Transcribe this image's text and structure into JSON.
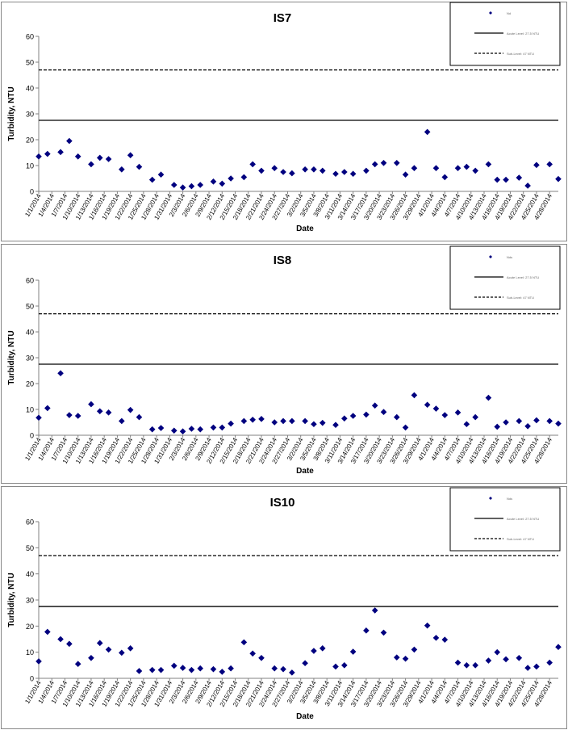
{
  "colors": {
    "marker": "#00007F",
    "line": "#000000",
    "panel_border": "#888888"
  },
  "chart_data": [
    {
      "type": "scatter",
      "title": "IS7",
      "xlabel": "Date",
      "ylabel": "Turbidity, NTU",
      "ylim": [
        0,
        60
      ],
      "yticks": [
        "0",
        "10",
        "20",
        "30",
        "40",
        "50",
        "60"
      ],
      "xticks": [
        "1/1/2014",
        "1/4/2014",
        "1/7/2014",
        "1/10/2014",
        "1/13/2014",
        "1/16/2014",
        "1/19/2014",
        "1/22/2014",
        "1/25/2014",
        "1/28/2014",
        "1/31/2014",
        "2/3/2014",
        "2/6/2014",
        "2/9/2014",
        "2/12/2014",
        "2/15/2014",
        "2/18/2014",
        "2/21/2014",
        "2/24/2014",
        "2/27/2014",
        "3/2/2014",
        "3/5/2014",
        "3/8/2014",
        "3/11/2014",
        "3/14/2014",
        "3/17/2014",
        "3/20/2014",
        "3/23/2014",
        "3/26/2014",
        "3/29/2014",
        "4/1/2014",
        "4/4/2014",
        "4/7/2014",
        "4/10/2014",
        "4/13/2014",
        "4/16/2014",
        "4/19/2014",
        "4/22/2014",
        "4/25/2014",
        "4/28/2014"
      ],
      "x_start": "1/1/2014",
      "x_end": "4/30/2014",
      "grid": false,
      "legend_position": "top-right",
      "legend": [
        {
          "kind": "marker",
          "label": "Nd"
        },
        {
          "kind": "solid",
          "label": "Acute Level: 27.5 NTU"
        },
        {
          "kind": "dashed",
          "label": "Sub-Level: 47 NTU"
        }
      ],
      "hlines": [
        {
          "value": 27.5,
          "style": "solid"
        },
        {
          "value": 47,
          "style": "dashed"
        }
      ],
      "series": [
        {
          "points": [
            [
              "1/1/2014",
              13.5
            ],
            [
              "1/3/2014",
              14.5
            ],
            [
              "1/6/2014",
              15.2
            ],
            [
              "1/8/2014",
              19.5
            ],
            [
              "1/10/2014",
              13.5
            ],
            [
              "1/13/2014",
              10.5
            ],
            [
              "1/15/2014",
              13
            ],
            [
              "1/17/2014",
              12.5
            ],
            [
              "1/20/2014",
              8.5
            ],
            [
              "1/22/2014",
              14
            ],
            [
              "1/24/2014",
              9.5
            ],
            [
              "1/27/2014",
              4.5
            ],
            [
              "1/29/2014",
              6.5
            ],
            [
              "2/1/2014",
              2.5
            ],
            [
              "2/3/2014",
              1.5
            ],
            [
              "2/5/2014",
              2
            ],
            [
              "2/7/2014",
              2.5
            ],
            [
              "2/10/2014",
              3.8
            ],
            [
              "2/12/2014",
              3
            ],
            [
              "2/14/2014",
              5
            ],
            [
              "2/17/2014",
              5.5
            ],
            [
              "2/19/2014",
              10.5
            ],
            [
              "2/21/2014",
              8
            ],
            [
              "2/24/2014",
              9
            ],
            [
              "2/26/2014",
              7.5
            ],
            [
              "2/28/2014",
              7
            ],
            [
              "3/3/2014",
              8.5
            ],
            [
              "3/5/2014",
              8.5
            ],
            [
              "3/7/2014",
              8
            ],
            [
              "3/10/2014",
              6.8
            ],
            [
              "3/12/2014",
              7.5
            ],
            [
              "3/14/2014",
              6.8
            ],
            [
              "3/17/2014",
              8
            ],
            [
              "3/19/2014",
              10.5
            ],
            [
              "3/21/2014",
              11
            ],
            [
              "3/24/2014",
              11
            ],
            [
              "3/26/2014",
              6.5
            ],
            [
              "3/28/2014",
              9
            ],
            [
              "3/31/2014",
              23
            ],
            [
              "4/2/2014",
              9
            ],
            [
              "4/4/2014",
              5.5
            ],
            [
              "4/7/2014",
              9
            ],
            [
              "4/9/2014",
              9.5
            ],
            [
              "4/11/2014",
              8
            ],
            [
              "4/14/2014",
              10.5
            ],
            [
              "4/16/2014",
              4.5
            ],
            [
              "4/18/2014",
              4.5
            ],
            [
              "4/21/2014",
              5.3
            ],
            [
              "4/23/2014",
              2.2
            ],
            [
              "4/25/2014",
              10.2
            ],
            [
              "4/28/2014",
              10.5
            ],
            [
              "4/30/2014",
              4.8
            ]
          ]
        }
      ]
    },
    {
      "type": "scatter",
      "title": "IS8",
      "xlabel": "Date",
      "ylabel": "Turbidity, NTU",
      "ylim": [
        0,
        60
      ],
      "yticks": [
        "0",
        "10",
        "20",
        "30",
        "40",
        "50",
        "60"
      ],
      "xticks": [
        "1/1/2014",
        "1/4/2014",
        "1/7/2014",
        "1/10/2014",
        "1/13/2014",
        "1/16/2014",
        "1/19/2014",
        "1/22/2014",
        "1/25/2014",
        "1/28/2014",
        "1/31/2014",
        "2/3/2014",
        "2/6/2014",
        "2/9/2014",
        "2/12/2014",
        "2/15/2014",
        "2/18/2014",
        "2/21/2014",
        "2/24/2014",
        "2/27/2014",
        "3/2/2014",
        "3/5/2014",
        "3/8/2014",
        "3/11/2014",
        "3/14/2014",
        "3/17/2014",
        "3/20/2014",
        "3/23/2014",
        "3/26/2014",
        "3/29/2014",
        "4/1/2014",
        "4/4/2014",
        "4/7/2014",
        "4/10/2014",
        "4/13/2014",
        "4/16/2014",
        "4/19/2014",
        "4/22/2014",
        "4/25/2014",
        "4/28/2014"
      ],
      "x_start": "1/1/2014",
      "x_end": "4/30/2014",
      "grid": false,
      "legend_position": "top-right",
      "legend": [
        {
          "kind": "marker",
          "label": "Nds"
        },
        {
          "kind": "solid",
          "label": "Acute Level: 27.5 NTU"
        },
        {
          "kind": "dashed",
          "label": "Sub-Level: 47 NTU"
        }
      ],
      "hlines": [
        {
          "value": 27.5,
          "style": "solid"
        },
        {
          "value": 47,
          "style": "dashed"
        }
      ],
      "series": [
        {
          "points": [
            [
              "1/1/2014",
              6.8
            ],
            [
              "1/3/2014",
              10.5
            ],
            [
              "1/6/2014",
              24
            ],
            [
              "1/8/2014",
              7.8
            ],
            [
              "1/10/2014",
              7.5
            ],
            [
              "1/13/2014",
              12
            ],
            [
              "1/15/2014",
              9.3
            ],
            [
              "1/17/2014",
              8.8
            ],
            [
              "1/20/2014",
              5.5
            ],
            [
              "1/22/2014",
              9.8
            ],
            [
              "1/24/2014",
              7
            ],
            [
              "1/27/2014",
              2.3
            ],
            [
              "1/29/2014",
              2.8
            ],
            [
              "2/1/2014",
              1.8
            ],
            [
              "2/3/2014",
              1.5
            ],
            [
              "2/5/2014",
              2.5
            ],
            [
              "2/7/2014",
              2.3
            ],
            [
              "2/10/2014",
              3
            ],
            [
              "2/12/2014",
              3
            ],
            [
              "2/14/2014",
              4.5
            ],
            [
              "2/17/2014",
              5.5
            ],
            [
              "2/19/2014",
              6
            ],
            [
              "2/21/2014",
              6.3
            ],
            [
              "2/24/2014",
              5
            ],
            [
              "2/26/2014",
              5.5
            ],
            [
              "2/28/2014",
              5.5
            ],
            [
              "3/3/2014",
              5.5
            ],
            [
              "3/5/2014",
              4.3
            ],
            [
              "3/7/2014",
              4.8
            ],
            [
              "3/10/2014",
              4
            ],
            [
              "3/12/2014",
              6.5
            ],
            [
              "3/14/2014",
              7.5
            ],
            [
              "3/17/2014",
              8
            ],
            [
              "3/19/2014",
              11.5
            ],
            [
              "3/21/2014",
              9
            ],
            [
              "3/24/2014",
              7
            ],
            [
              "3/26/2014",
              3
            ],
            [
              "3/28/2014",
              15.5
            ],
            [
              "3/31/2014",
              11.8
            ],
            [
              "4/2/2014",
              10.3
            ],
            [
              "4/4/2014",
              7.8
            ],
            [
              "4/7/2014",
              8.8
            ],
            [
              "4/9/2014",
              4.3
            ],
            [
              "4/11/2014",
              7
            ],
            [
              "4/14/2014",
              14.5
            ],
            [
              "4/16/2014",
              3.3
            ],
            [
              "4/18/2014",
              5
            ],
            [
              "4/21/2014",
              5.5
            ],
            [
              "4/23/2014",
              3.5
            ],
            [
              "4/25/2014",
              5.8
            ],
            [
              "4/28/2014",
              5.5
            ],
            [
              "4/30/2014",
              4.5
            ]
          ]
        }
      ]
    },
    {
      "type": "scatter",
      "title": "IS10",
      "xlabel": "Date",
      "ylabel": "Turbidity, NTU",
      "ylim": [
        0,
        60
      ],
      "yticks": [
        "0",
        "10",
        "20",
        "30",
        "40",
        "50",
        "60"
      ],
      "xticks": [
        "1/1/2014",
        "1/4/2014",
        "1/7/2014",
        "1/10/2014",
        "1/13/2014",
        "1/16/2014",
        "1/19/2014",
        "1/22/2014",
        "1/25/2014",
        "1/28/2014",
        "1/31/2014",
        "2/3/2014",
        "2/6/2014",
        "2/9/2014",
        "2/12/2014",
        "2/15/2014",
        "2/18/2014",
        "2/21/2014",
        "2/24/2014",
        "2/27/2014",
        "3/2/2014",
        "3/5/2014",
        "3/8/2014",
        "3/11/2014",
        "3/14/2014",
        "3/17/2014",
        "3/20/2014",
        "3/23/2014",
        "3/26/2014",
        "3/29/2014",
        "4/1/2014",
        "4/4/2014",
        "4/7/2014",
        "4/10/2014",
        "4/13/2014",
        "4/16/2014",
        "4/19/2014",
        "4/22/2014",
        "4/25/2014",
        "4/28/2014"
      ],
      "x_start": "1/1/2014",
      "x_end": "4/30/2014",
      "grid": false,
      "legend_position": "top-right",
      "legend": [
        {
          "kind": "marker",
          "label": "Nds"
        },
        {
          "kind": "solid",
          "label": "Acute Level: 27.5 NTU"
        },
        {
          "kind": "dashed",
          "label": "Sub-Level: 47 NTU"
        }
      ],
      "hlines": [
        {
          "value": 27.5,
          "style": "solid"
        },
        {
          "value": 47,
          "style": "dashed"
        }
      ],
      "series": [
        {
          "points": [
            [
              "1/1/2014",
              6.5
            ],
            [
              "1/3/2014",
              17.8
            ],
            [
              "1/6/2014",
              15
            ],
            [
              "1/8/2014",
              13.2
            ],
            [
              "1/10/2014",
              5.5
            ],
            [
              "1/13/2014",
              7.8
            ],
            [
              "1/15/2014",
              13.5
            ],
            [
              "1/17/2014",
              11
            ],
            [
              "1/20/2014",
              9.8
            ],
            [
              "1/22/2014",
              11.5
            ],
            [
              "1/24/2014",
              2.8
            ],
            [
              "1/27/2014",
              3.2
            ],
            [
              "1/29/2014",
              3.2
            ],
            [
              "2/1/2014",
              4.8
            ],
            [
              "2/3/2014",
              4
            ],
            [
              "2/5/2014",
              3.2
            ],
            [
              "2/7/2014",
              3.8
            ],
            [
              "2/10/2014",
              3.5
            ],
            [
              "2/12/2014",
              2.5
            ],
            [
              "2/14/2014",
              3.8
            ],
            [
              "2/17/2014",
              13.8
            ],
            [
              "2/19/2014",
              9.5
            ],
            [
              "2/21/2014",
              7.8
            ],
            [
              "2/24/2014",
              3.8
            ],
            [
              "2/26/2014",
              3.5
            ],
            [
              "2/28/2014",
              2.2
            ],
            [
              "3/3/2014",
              5.8
            ],
            [
              "3/5/2014",
              10.5
            ],
            [
              "3/7/2014",
              11.5
            ],
            [
              "3/10/2014",
              4.5
            ],
            [
              "3/12/2014",
              5
            ],
            [
              "3/14/2014",
              10.2
            ],
            [
              "3/17/2014",
              18.3
            ],
            [
              "3/19/2014",
              26
            ],
            [
              "3/21/2014",
              17.5
            ],
            [
              "3/24/2014",
              8
            ],
            [
              "3/26/2014",
              7.5
            ],
            [
              "3/28/2014",
              11
            ],
            [
              "3/31/2014",
              20.2
            ],
            [
              "4/2/2014",
              15.5
            ],
            [
              "4/4/2014",
              14.8
            ],
            [
              "4/7/2014",
              6
            ],
            [
              "4/9/2014",
              5
            ],
            [
              "4/11/2014",
              5
            ],
            [
              "4/14/2014",
              6.8
            ],
            [
              "4/16/2014",
              10
            ],
            [
              "4/18/2014",
              7.3
            ],
            [
              "4/21/2014",
              7.8
            ],
            [
              "4/23/2014",
              4
            ],
            [
              "4/25/2014",
              4.5
            ],
            [
              "4/28/2014",
              6
            ],
            [
              "4/30/2014",
              12
            ]
          ]
        }
      ]
    }
  ]
}
